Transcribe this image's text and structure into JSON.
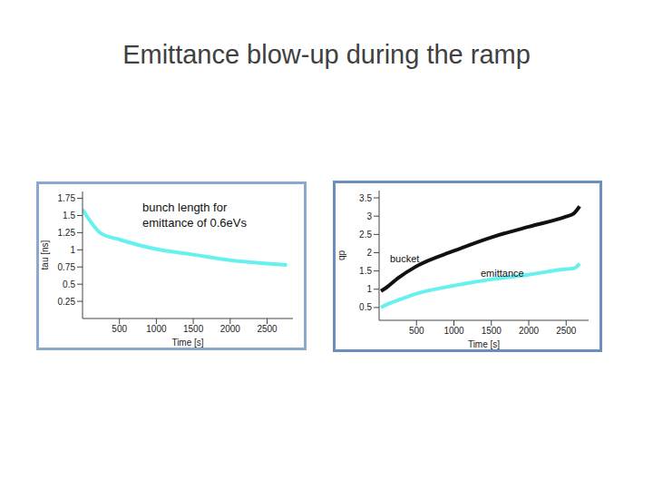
{
  "title": "Emittance blow-up during the ramp",
  "chart_data": [
    {
      "type": "line",
      "x_label": "Time [s]",
      "y_label": "tau [ns]",
      "annotations": [
        "bunch length for emittance of 0.6eVs"
      ],
      "x": [
        0,
        250,
        500,
        1000,
        1500,
        2000,
        2500,
        2770
      ],
      "values": [
        1.59,
        1.24,
        1.15,
        1.01,
        0.93,
        0.85,
        0.8,
        0.78
      ],
      "color": "#66f0f0",
      "xlim": [
        0,
        2850
      ],
      "xticks": [
        500,
        1000,
        1500,
        2000,
        2500
      ],
      "ylim": [
        0,
        1.85
      ],
      "yticks": [
        0.25,
        0.5,
        0.75,
        1,
        1.25,
        1.5,
        1.75
      ]
    },
    {
      "type": "line",
      "x_label": "Time [s]",
      "y_label": "qp",
      "x": [
        25,
        100,
        250,
        500,
        1000,
        1500,
        2000,
        2500,
        2600,
        2680
      ],
      "series": [
        {
          "name": "bucket",
          "color": "#111111",
          "values": [
            0.95,
            1.05,
            1.3,
            1.63,
            2.05,
            2.42,
            2.71,
            2.99,
            3.07,
            3.27
          ]
        },
        {
          "name": "emittance",
          "color": "#66f0f0",
          "values": [
            0.5,
            0.58,
            0.7,
            0.88,
            1.1,
            1.27,
            1.4,
            1.55,
            1.57,
            1.7
          ]
        }
      ],
      "xlim": [
        0,
        2800
      ],
      "xticks": [
        500,
        1000,
        1500,
        2000,
        2500
      ],
      "ylim": [
        0.15,
        3.7
      ],
      "yticks": [
        0.5,
        1,
        1.5,
        2,
        2.5,
        3,
        3.5
      ]
    }
  ]
}
